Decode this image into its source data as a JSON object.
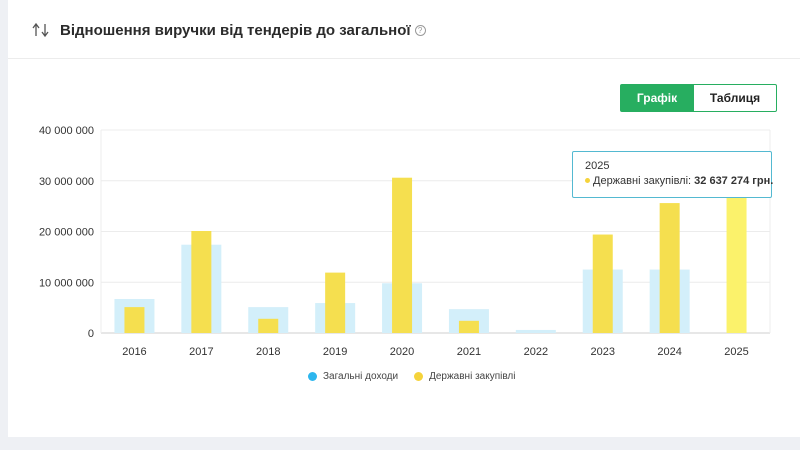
{
  "header": {
    "title": "Відношення виручки від тендерів до загальної",
    "help_glyph": "?",
    "sort_icon": "sort-arrows-icon",
    "help_icon": "help-circle-icon"
  },
  "toggle": {
    "graph_label": "Графік",
    "table_label": "Таблиця",
    "active": "graph",
    "active_color": "#27ae60"
  },
  "chart_data": {
    "type": "bar",
    "categories": [
      "2016",
      "2017",
      "2018",
      "2019",
      "2020",
      "2021",
      "2022",
      "2023",
      "2024",
      "2025"
    ],
    "series": [
      {
        "name": "Загальні доходи",
        "color": "#d3effa",
        "legend_color": "#2db6ee",
        "values": [
          6700000,
          17400000,
          5100000,
          5900000,
          9800000,
          4700000,
          600000,
          12500000,
          12500000,
          0
        ]
      },
      {
        "name": "Державні закупівлі",
        "color": "#f5df4f",
        "legend_color": "#f5d33b",
        "values": [
          5100000,
          20100000,
          2800000,
          11900000,
          30600000,
          2400000,
          0,
          19400000,
          25600000,
          32637274
        ]
      }
    ],
    "ylim": [
      0,
      40000000
    ],
    "yticks": [
      "0",
      "10 000 000",
      "20 000 000",
      "30 000 000",
      "40 000 000"
    ],
    "ytick_values": [
      0,
      10000000,
      20000000,
      30000000,
      40000000
    ],
    "grid": true,
    "legend_position": "bottom",
    "highlighted_category": "2025",
    "highlight_color": "#fbf26b"
  },
  "tooltip": {
    "year": "2025",
    "series_label": "Державні закупівлі:",
    "value": "32 637 274 грн."
  }
}
